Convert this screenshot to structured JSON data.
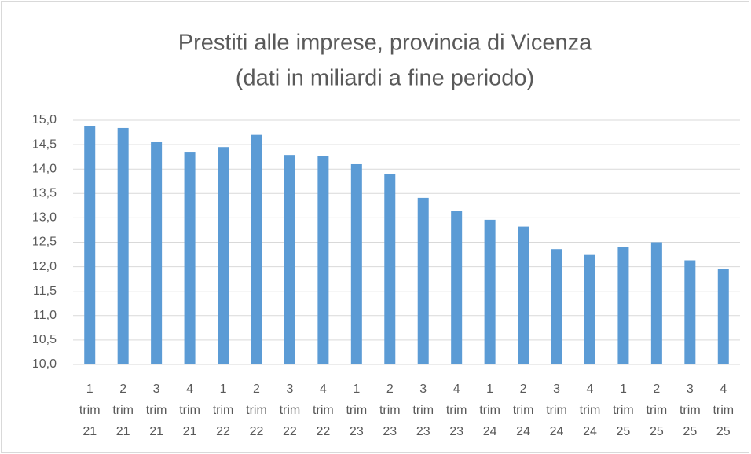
{
  "chart_data": {
    "type": "bar",
    "title": "Prestiti alle imprese, provincia di Vicenza",
    "subtitle": "(dati in miliardi a fine periodo)",
    "categories": [
      "1 trim 21",
      "2 trim 21",
      "3 trim 21",
      "4 trim 21",
      "1 trim 22",
      "2 trim 22",
      "3 trim 22",
      "4 trim 22",
      "1 trim 23",
      "2 trim 23",
      "3 trim 23",
      "4 trim 23",
      "1 trim 24",
      "2 trim 24",
      "3 trim 24",
      "4 trim 24",
      "1 trim 25",
      "2 trim 25",
      "3 trim 25",
      "4 trim 25"
    ],
    "values": [
      14.88,
      14.84,
      14.55,
      14.34,
      14.45,
      14.7,
      14.29,
      14.27,
      14.1,
      13.9,
      13.41,
      13.15,
      12.96,
      12.82,
      12.36,
      12.24,
      12.4,
      12.5,
      12.13,
      11.96
    ],
    "color": "#5b9bd5",
    "ylim": [
      10,
      15
    ],
    "yticks": [
      {
        "value": 10,
        "label": "10,0"
      },
      {
        "value": 10.5,
        "label": "10,5"
      },
      {
        "value": 11,
        "label": "11,0"
      },
      {
        "value": 11.5,
        "label": "11,5"
      },
      {
        "value": 12,
        "label": "12,0"
      },
      {
        "value": 12.5,
        "label": "12,5"
      },
      {
        "value": 13,
        "label": "13,0"
      },
      {
        "value": 13.5,
        "label": "13,5"
      },
      {
        "value": 14,
        "label": "14,0"
      },
      {
        "value": 14.5,
        "label": "14,5"
      },
      {
        "value": 15,
        "label": "15,0"
      }
    ],
    "grid": true
  }
}
